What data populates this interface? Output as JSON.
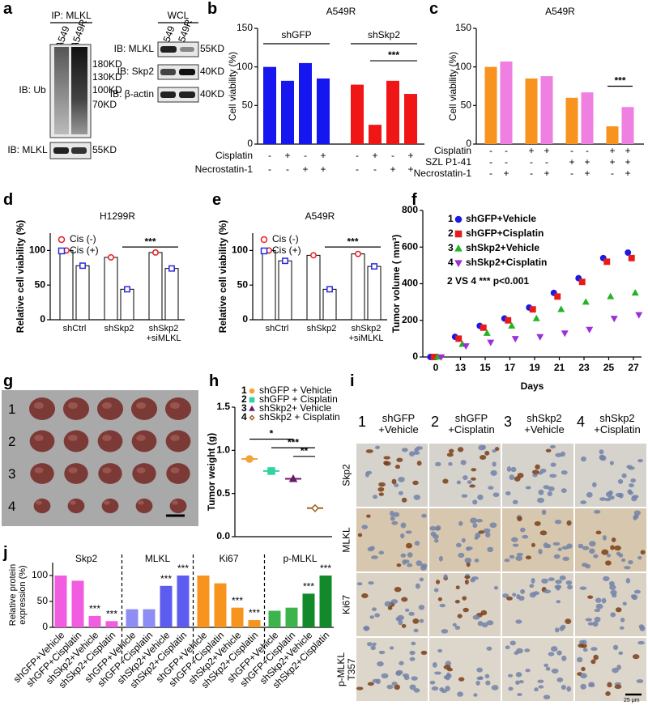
{
  "panel_labels": [
    "a",
    "b",
    "c",
    "d",
    "e",
    "f",
    "g",
    "h",
    "i",
    "j"
  ],
  "blot": {
    "ip_title": "IP: MLKL",
    "wcl_title": "WCL",
    "ip_lanes": [
      "A549",
      "A549R"
    ],
    "wcl_lanes": [
      "A549",
      "A549R"
    ],
    "ip_rows": [
      "IB: Ub",
      "IB: MLKL"
    ],
    "wcl_rows": [
      "IB: MLKL",
      "IB: Skp2",
      "IB: β-actin"
    ],
    "ip_markers": [
      "180KD",
      "130KD",
      "100KD",
      "70KD",
      "55KD"
    ],
    "wcl_markers": [
      "55KD",
      "40KD",
      "40KD"
    ]
  },
  "photo": {
    "rows": [
      "1",
      "2",
      "3",
      "4"
    ]
  },
  "ihc": {
    "columns": [
      {
        "number": "1",
        "label": "shGFP\n+Vehicle"
      },
      {
        "number": "2",
        "label": "shGFP\n+Cisplatin"
      },
      {
        "number": "3",
        "label": "shSkp2\n+Vehicle"
      },
      {
        "number": "4",
        "label": "shSkp2\n+Cisplatin"
      }
    ],
    "rows": [
      "Skp2",
      "MLKL",
      "Ki67",
      "p-MLKL\nT357"
    ],
    "scale": "25 μm"
  },
  "chart_data": [
    {
      "type": "bar",
      "title": "A549R",
      "ylabel": "Cell viability (%)",
      "ylim": [
        0,
        150
      ],
      "yticks": [
        0,
        50,
        100,
        150
      ],
      "group_labels": [
        "shGFP",
        "shSkp2"
      ],
      "values": [
        100,
        82,
        105,
        85,
        77,
        25,
        82,
        65
      ],
      "colors": [
        "#1616f0",
        "#1616f0",
        "#1616f0",
        "#1616f0",
        "#f01616",
        "#f01616",
        "#f01616",
        "#f01616"
      ],
      "conditions": [
        {
          "name": "Cisplatin",
          "signs": [
            "-",
            "+",
            "-",
            "+",
            "-",
            "+",
            "-",
            "+"
          ]
        },
        {
          "name": "Necrostatin-1",
          "signs": [
            "-",
            "-",
            "+",
            "+",
            "-",
            "-",
            "+",
            "+"
          ]
        }
      ],
      "annotation": "***"
    },
    {
      "type": "bar",
      "title": "A549R",
      "ylabel": "Cell viability (%)",
      "ylim": [
        0,
        150
      ],
      "yticks": [
        0,
        50,
        100,
        150
      ],
      "values": [
        100,
        107,
        85,
        88,
        60,
        67,
        23,
        48
      ],
      "colors": [
        "#f7931e",
        "#ef7fe0",
        "#f7931e",
        "#ef7fe0",
        "#f7931e",
        "#ef7fe0",
        "#f7931e",
        "#ef7fe0"
      ],
      "conditions": [
        {
          "name": "Cisplatin",
          "signs": [
            "-",
            "-",
            "+",
            "+",
            "-",
            "-",
            "+",
            "+"
          ]
        },
        {
          "name": "SZL P1-41",
          "signs": [
            "-",
            "-",
            "-",
            "-",
            "+",
            "+",
            "+",
            "+"
          ]
        },
        {
          "name": "Necrostatin-1",
          "signs": [
            "-",
            "+",
            "-",
            "+",
            "-",
            "+",
            "-",
            "+"
          ]
        }
      ],
      "annotation": "***"
    },
    {
      "type": "grouped_bar",
      "title": "H1299R",
      "ylabel": "Relative cell viability (%)",
      "ylim": [
        0,
        125
      ],
      "yticks": [
        0,
        50,
        100
      ],
      "categories": [
        "shCtrl",
        "shSkp2",
        "shSkp2\n+siMLKL"
      ],
      "series": [
        {
          "name": "Cis (-)",
          "color": "#e8191b",
          "marker": "circle",
          "values": [
            100,
            90,
            97
          ]
        },
        {
          "name": "Cis (+)",
          "color": "#2a2ae0",
          "marker": "square",
          "values": [
            78,
            44,
            74
          ]
        }
      ],
      "annotation": "***"
    },
    {
      "type": "grouped_bar",
      "title": "A549R",
      "ylabel": "Relative cell viability (%)",
      "ylim": [
        0,
        125
      ],
      "yticks": [
        0,
        50,
        100
      ],
      "categories": [
        "shCtrl",
        "shSkp2",
        "shSkp2\n+siMLKL"
      ],
      "series": [
        {
          "name": "Cis (-)",
          "color": "#e8191b",
          "marker": "circle",
          "values": [
            100,
            93,
            95
          ]
        },
        {
          "name": "Cis (+)",
          "color": "#2a2ae0",
          "marker": "square",
          "values": [
            85,
            44,
            77
          ]
        }
      ],
      "annotation": "***"
    },
    {
      "type": "dot",
      "ylabel": "Tumor volume ( mm³)",
      "xlabel": "Days",
      "ylim": [
        0,
        800
      ],
      "yticks": [
        0,
        200,
        400,
        600,
        800
      ],
      "categories": [
        0,
        13,
        15,
        17,
        19,
        21,
        23,
        25,
        27
      ],
      "legend_numbers": [
        "1",
        "2",
        "3",
        "4"
      ],
      "series": [
        {
          "name": "shGFP+Vehicle",
          "color": "#1a1ae6",
          "marker": "circle",
          "filled": true,
          "values": [
            0,
            110,
            170,
            210,
            270,
            350,
            430,
            540,
            570
          ]
        },
        {
          "name": "shGFP+Cisplatin",
          "color": "#e81a1a",
          "marker": "square",
          "filled": true,
          "values": [
            0,
            100,
            160,
            200,
            260,
            330,
            410,
            520,
            540
          ]
        },
        {
          "name": "shSkp2+Vehicle",
          "color": "#22b422",
          "marker": "triangle",
          "filled": true,
          "values": [
            0,
            70,
            130,
            170,
            210,
            260,
            300,
            330,
            350
          ]
        },
        {
          "name": "shSkp2+Cisplatin",
          "color": "#9b30d9",
          "marker": "triangle-down",
          "filled": true,
          "values": [
            0,
            60,
            80,
            100,
            110,
            130,
            150,
            210,
            230
          ]
        }
      ],
      "annotation": "2 VS 4 *** p<0.001"
    },
    {
      "type": "dot",
      "ylabel": "Tumor weight (g)",
      "ylim": [
        0,
        1.5
      ],
      "yticks": [
        {
          "value": 0,
          "label": "0.0"
        },
        0.5,
        {
          "value": 1,
          "label": "1.0"
        },
        {
          "value": 1.5,
          "label": "1.5"
        }
      ],
      "legend_numbers": [
        "1",
        "2",
        "3",
        "4"
      ],
      "series": [
        {
          "name": "shGFP + Vehicle",
          "color": "#f2a33a",
          "marker": "circle",
          "filled": true,
          "values": [
            0.9
          ]
        },
        {
          "name": "shGFP + Cisplatin",
          "color": "#2fd4a0",
          "marker": "square",
          "filled": true,
          "values": [
            0.76
          ]
        },
        {
          "name": "shSkp2+ Vehicle",
          "color": "#6b1a6b",
          "marker": "triangle",
          "filled": true,
          "values": [
            0.67
          ]
        },
        {
          "name": "shSkp2 + Cisplatin",
          "color": "#a0642a",
          "marker": "diamond",
          "filled": false,
          "values": [
            0.33
          ]
        }
      ],
      "annotations": [
        "*",
        "***",
        "**"
      ]
    },
    {
      "type": "bar",
      "ylabel": "Relative protein expression (%)",
      "ylim": [
        0,
        125
      ],
      "yticks": [
        0,
        50,
        100
      ],
      "group_titles": [
        "Skp2",
        "MLKL",
        "Ki67",
        "p-MLKL"
      ],
      "categories": [
        "shGFP+Vehicle",
        "shGFP+Cisplatin",
        "shSkp2+Vehicle",
        "shSkp2+Cisplatin",
        "shGFP+Vehicle",
        "shGFP+Cisplatin",
        "shSkp2+Vehicle",
        "shSkp2+Cisplatin",
        "shGFP+Vehicle",
        "shGFP+Cisplatin",
        "shSkp2+Vehicle",
        "shSkp2+Cisplatin",
        "shGFP+Vehicle",
        "shGFP+Cisplatin",
        "shSkp2+Vehicle",
        "shSkp2+Cisplatin"
      ],
      "values": [
        100,
        90,
        22,
        12,
        35,
        35,
        80,
        100,
        100,
        85,
        38,
        14,
        32,
        38,
        65,
        100
      ],
      "colors": [
        "#f25ce0",
        "#f25ce0",
        "#f25ce0",
        "#f25ce0",
        "#8d8df5",
        "#8d8df5",
        "#5c5cf0",
        "#5c5cf0",
        "#f7941d",
        "#f7941d",
        "#f7941d",
        "#f7941d",
        "#3cb44b",
        "#3cb44b",
        "#138a2a",
        "#138a2a"
      ],
      "significance": [
        null,
        null,
        "***",
        "***",
        null,
        null,
        "***",
        "***",
        null,
        null,
        "***",
        "***",
        null,
        null,
        "***",
        "***"
      ]
    }
  ]
}
